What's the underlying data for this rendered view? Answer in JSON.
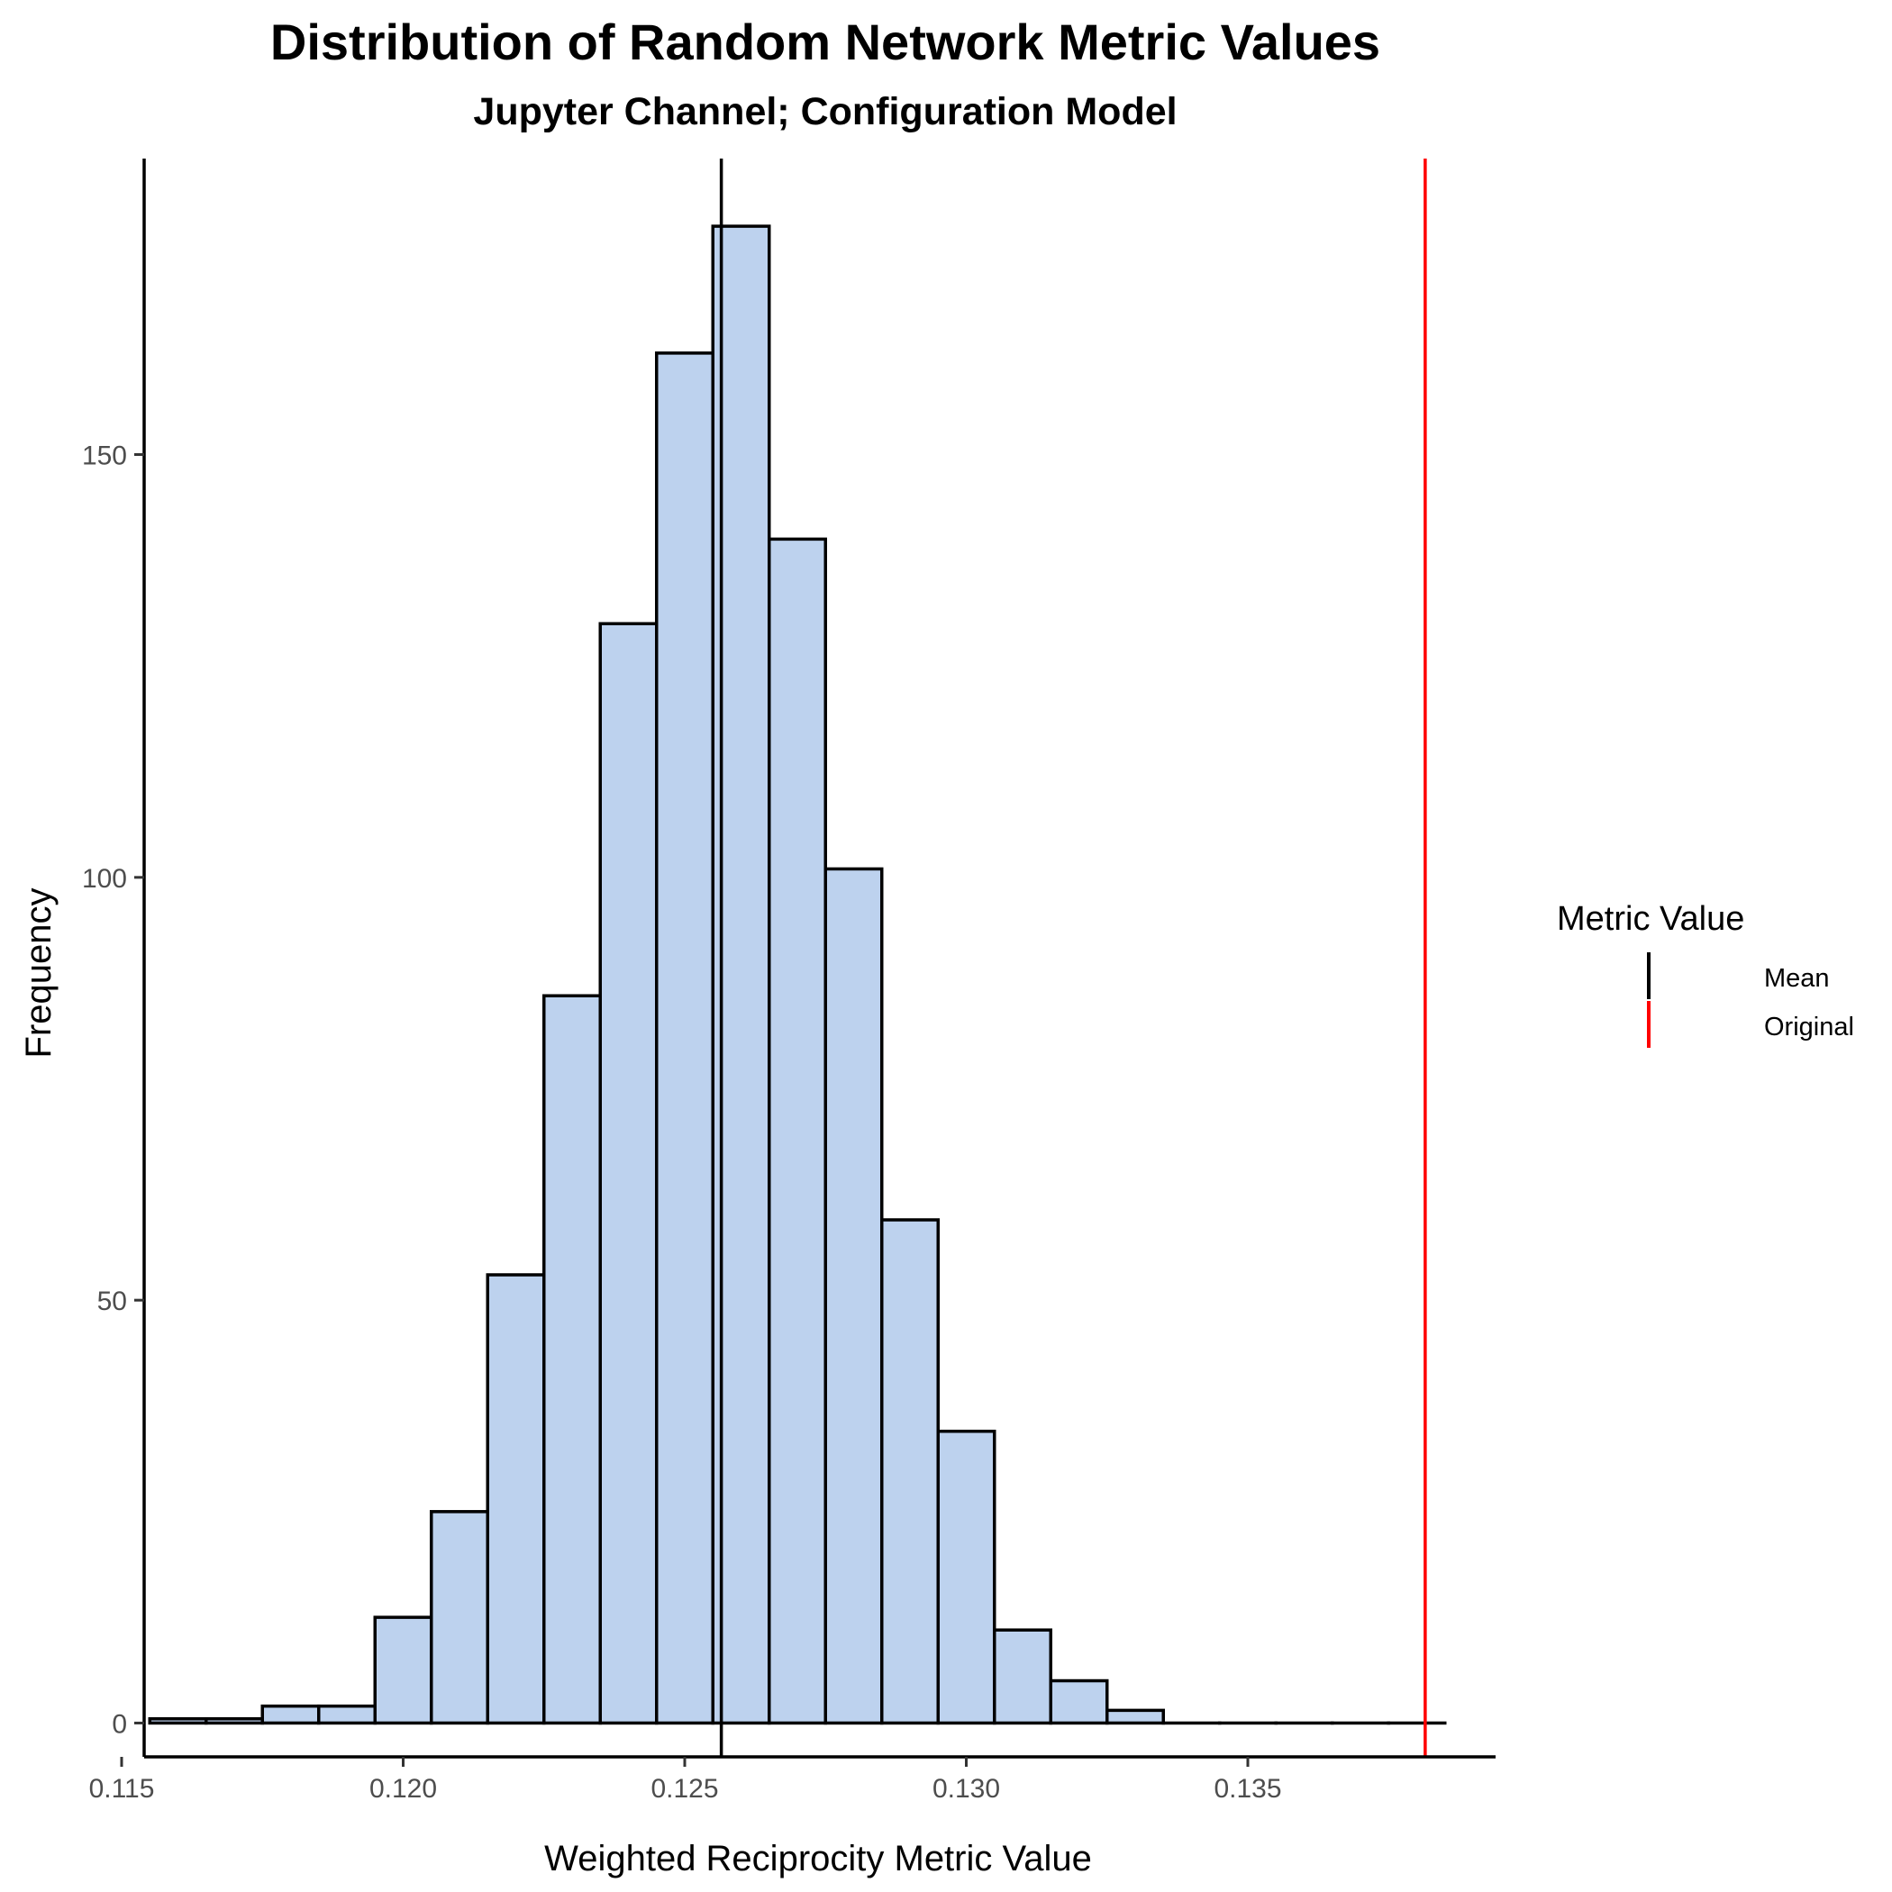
{
  "chart_data": {
    "type": "bar",
    "title": "Distribution of Random Network Metric Values",
    "subtitle": "Jupyter Channel; Configuration Model",
    "xlabel": "Weighted Reciprocity Metric Value",
    "ylabel": "Frequency",
    "xlim": [
      0.1154,
      0.1394
    ],
    "ylim": [
      -4,
      185
    ],
    "x_ticks": [
      0.115,
      0.12,
      0.125,
      0.13,
      0.135
    ],
    "x_tick_labels": [
      "0.115",
      "0.120",
      "0.125",
      "0.130",
      "0.135"
    ],
    "y_ticks": [
      0,
      50,
      100,
      150
    ],
    "y_tick_labels": [
      "0",
      "50",
      "100",
      "150"
    ],
    "bin_width": 0.001,
    "bin_centers": [
      0.116,
      0.117,
      0.118,
      0.119,
      0.12,
      0.121,
      0.122,
      0.123,
      0.124,
      0.125,
      0.126,
      0.127,
      0.128,
      0.129,
      0.13,
      0.131,
      0.132,
      0.133,
      0.134,
      0.135,
      0.136,
      0.137,
      0.138
    ],
    "values": [
      0.5,
      0.5,
      2,
      2,
      12.5,
      25,
      53,
      86,
      130,
      162,
      177,
      140,
      101,
      59.5,
      34.5,
      11,
      5,
      1.5,
      0,
      0,
      0,
      0,
      0
    ],
    "bar_fill": "#bdd2ee",
    "bar_outline": "#000000",
    "reference_lines": [
      {
        "name": "Mean",
        "x": 0.12565,
        "color": "#000000"
      },
      {
        "name": "Original",
        "x": 0.13815,
        "color": "#ff0000"
      }
    ],
    "legend": {
      "title": "Metric Value",
      "position": "right",
      "entries": [
        {
          "label": "Mean",
          "color": "#000000"
        },
        {
          "label": "Original",
          "color": "#ff0000"
        }
      ]
    },
    "grid": false
  }
}
